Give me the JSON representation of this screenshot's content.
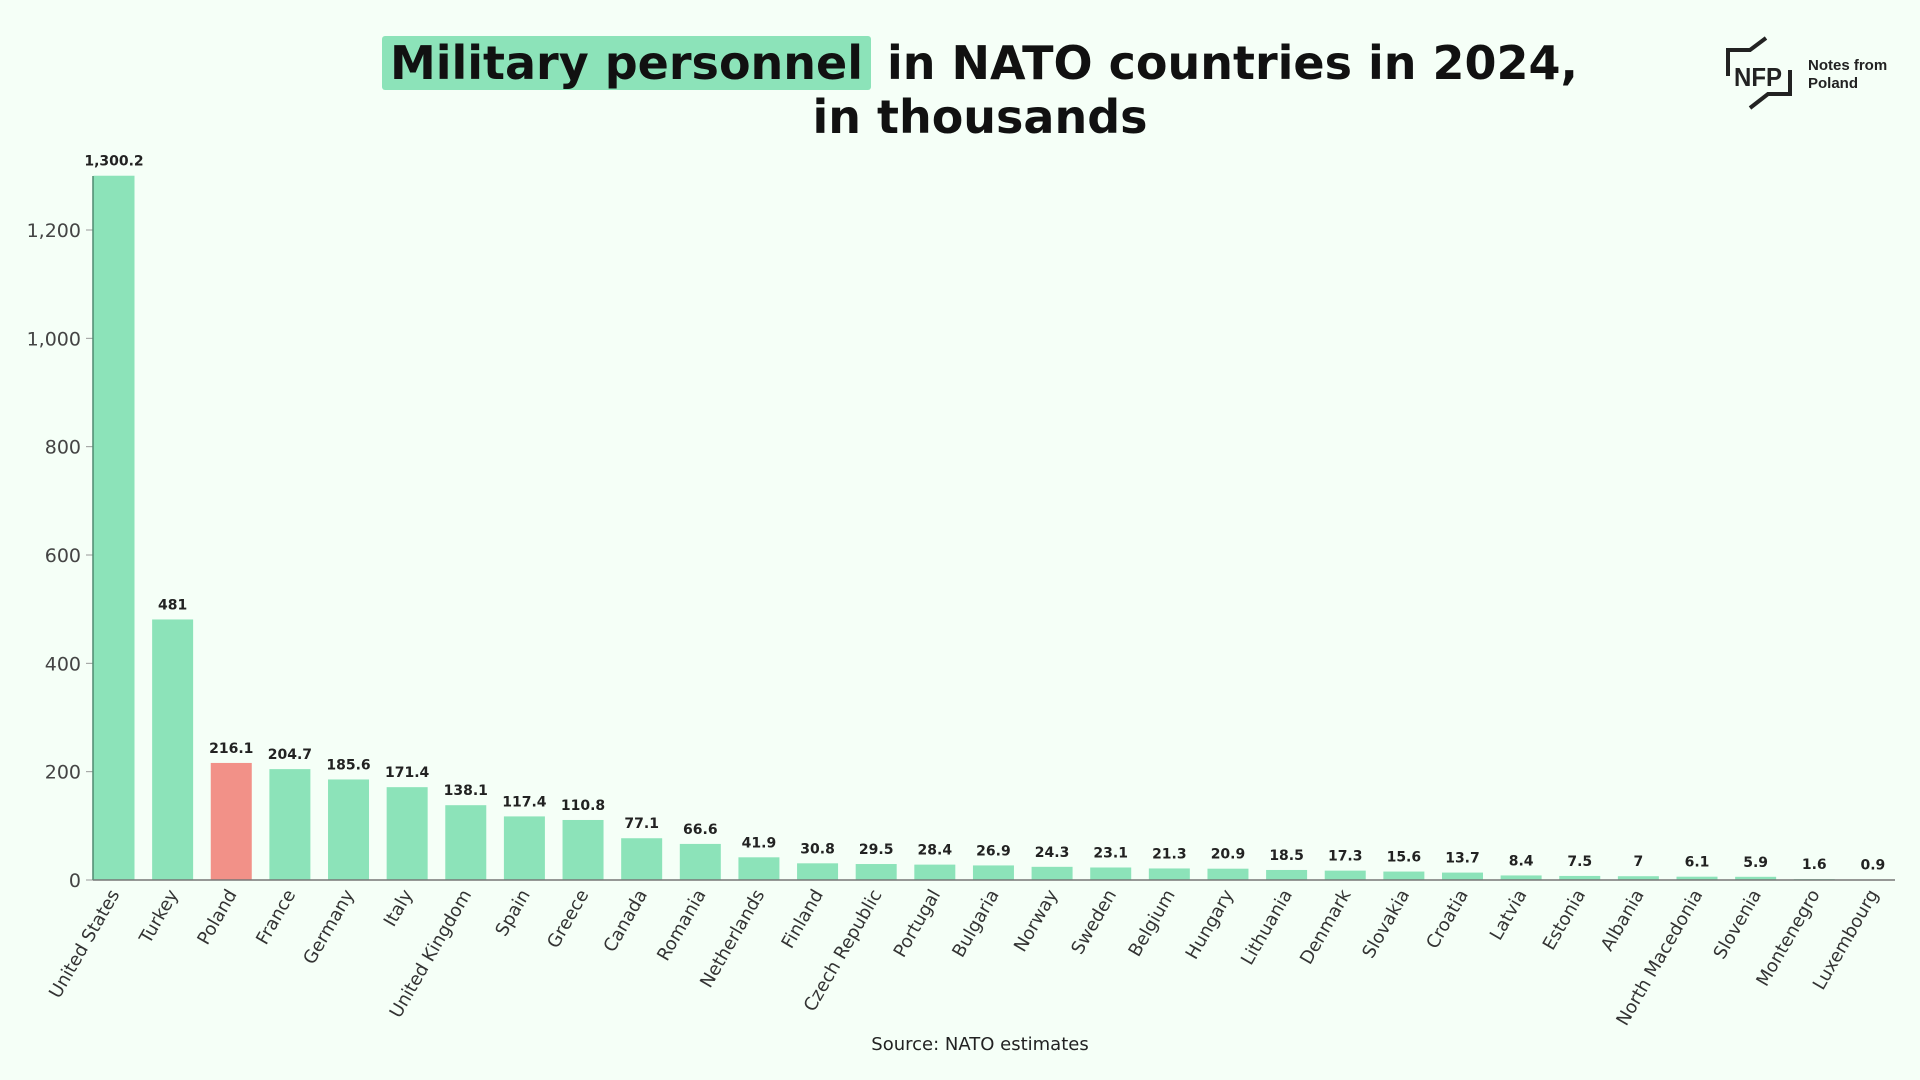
{
  "title": {
    "highlight": "Military personnel",
    "rest_line1": " in NATO countries in 2024,",
    "line2": "in thousands"
  },
  "logo": {
    "mark": "NFP",
    "text_line1": "Notes from",
    "text_line2": "Poland"
  },
  "source": "Source: NATO estimates",
  "colors": {
    "bar": "#8ce3b9",
    "highlight_bar": "#f29188",
    "background": "#f5fff7",
    "title_highlight": "#8ce3b9"
  },
  "chart_data": {
    "type": "bar",
    "title": "Military personnel in NATO countries in 2024, in thousands",
    "xlabel": "",
    "ylabel": "",
    "ylim": [
      0,
      1300.2
    ],
    "yticks": [
      0,
      200,
      400,
      600,
      800,
      1000,
      1200
    ],
    "ytick_labels": [
      "0",
      "200",
      "400",
      "600",
      "800",
      "1,000",
      "1,200"
    ],
    "grid": false,
    "highlighted_category": "Poland",
    "categories": [
      "United States",
      "Turkey",
      "Poland",
      "France",
      "Germany",
      "Italy",
      "United Kingdom",
      "Spain",
      "Greece",
      "Canada",
      "Romania",
      "Netherlands",
      "Finland",
      "Czech Republic",
      "Portugal",
      "Bulgaria",
      "Norway",
      "Sweden",
      "Belgium",
      "Hungary",
      "Lithuania",
      "Denmark",
      "Slovakia",
      "Croatia",
      "Latvia",
      "Estonia",
      "Albania",
      "North Macedonia",
      "Slovenia",
      "Montenegro",
      "Luxembourg"
    ],
    "values": [
      1300.2,
      481,
      216.1,
      204.7,
      185.6,
      171.4,
      138.1,
      117.4,
      110.8,
      77.1,
      66.6,
      41.9,
      30.8,
      29.5,
      28.4,
      26.9,
      24.3,
      23.1,
      21.3,
      20.9,
      18.5,
      17.3,
      15.6,
      13.7,
      8.4,
      7.5,
      7,
      6.1,
      5.9,
      1.6,
      0.9
    ],
    "value_labels": [
      "1,300.2",
      "481",
      "216.1",
      "204.7",
      "185.6",
      "171.4",
      "138.1",
      "117.4",
      "110.8",
      "77.1",
      "66.6",
      "41.9",
      "30.8",
      "29.5",
      "28.4",
      "26.9",
      "24.3",
      "23.1",
      "21.3",
      "20.9",
      "18.5",
      "17.3",
      "15.6",
      "13.7",
      "8.4",
      "7.5",
      "7",
      "6.1",
      "5.9",
      "1.6",
      "0.9"
    ]
  }
}
